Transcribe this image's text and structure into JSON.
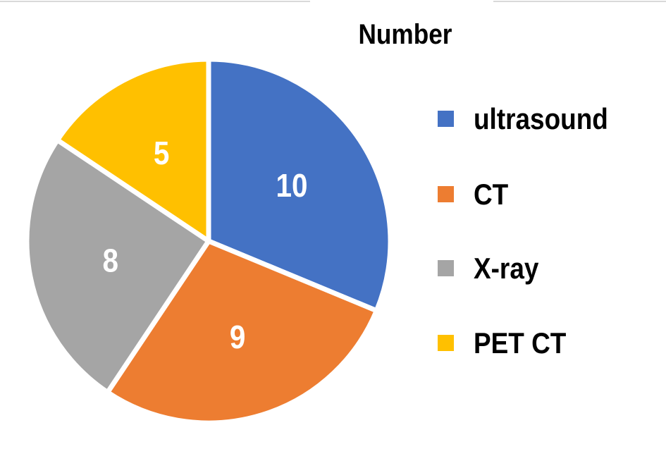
{
  "chart_data": {
    "type": "pie",
    "title": "Number",
    "categories": [
      "ultrasound",
      "CT",
      "X-ray",
      "PET CT"
    ],
    "values": [
      10,
      9,
      8,
      5
    ],
    "colors": [
      "#4472C4",
      "#ED7D31",
      "#A5A5A5",
      "#FFC000"
    ],
    "data_labels": [
      "10",
      "9",
      "8",
      "5"
    ],
    "legend_position": "right",
    "start_angle": "top, clockwise"
  }
}
